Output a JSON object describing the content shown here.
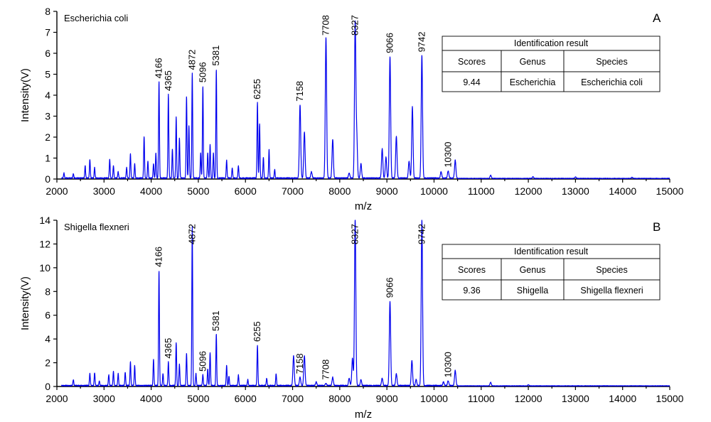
{
  "chart_data": [
    {
      "type": "line",
      "panel": "A",
      "species_label": "Escherichia coli",
      "xlabel": "m/z",
      "ylabel": "Intensity(V)",
      "xlim": [
        2000,
        15000
      ],
      "ylim": [
        0,
        8
      ],
      "xticks": [
        2000,
        3000,
        4000,
        5000,
        6000,
        7000,
        8000,
        9000,
        10000,
        11000,
        12000,
        13000,
        14000,
        15000
      ],
      "yticks": [
        0,
        1,
        2,
        3,
        4,
        5,
        6,
        7,
        8
      ],
      "labeled_peaks": [
        {
          "mz": 4166,
          "intensity": 4.6,
          "label": "4166"
        },
        {
          "mz": 4365,
          "intensity": 4.0,
          "label": "4365"
        },
        {
          "mz": 4872,
          "intensity": 5.0,
          "label": "4872"
        },
        {
          "mz": 5096,
          "intensity": 4.4,
          "label": "5096"
        },
        {
          "mz": 5381,
          "intensity": 5.2,
          "label": "5381"
        },
        {
          "mz": 6255,
          "intensity": 3.6,
          "label": "6255"
        },
        {
          "mz": 7158,
          "intensity": 3.5,
          "label": "7158"
        },
        {
          "mz": 7708,
          "intensity": 6.7,
          "label": "7708"
        },
        {
          "mz": 8327,
          "intensity": 7.4,
          "label": "8327"
        },
        {
          "mz": 9066,
          "intensity": 5.8,
          "label": "9066"
        },
        {
          "mz": 9742,
          "intensity": 5.85,
          "label": "9742"
        },
        {
          "mz": 10300,
          "intensity": 0.35,
          "label": "10300"
        }
      ],
      "minor_peaks": [
        [
          2150,
          0.25
        ],
        [
          2350,
          0.2
        ],
        [
          2600,
          0.6
        ],
        [
          2700,
          0.9
        ],
        [
          2800,
          0.5
        ],
        [
          3120,
          0.9
        ],
        [
          3200,
          0.6
        ],
        [
          3300,
          0.3
        ],
        [
          3480,
          0.5
        ],
        [
          3560,
          1.15
        ],
        [
          3650,
          0.7
        ],
        [
          3850,
          2.0
        ],
        [
          3930,
          0.8
        ],
        [
          4050,
          0.7
        ],
        [
          4100,
          1.2
        ],
        [
          4450,
          1.4
        ],
        [
          4530,
          2.9
        ],
        [
          4600,
          1.9
        ],
        [
          4750,
          3.9
        ],
        [
          4800,
          2.5
        ],
        [
          5050,
          1.2
        ],
        [
          5200,
          1.2
        ],
        [
          5250,
          1.6
        ],
        [
          5320,
          1.2
        ],
        [
          5600,
          0.85
        ],
        [
          5720,
          0.5
        ],
        [
          5850,
          0.6
        ],
        [
          6300,
          2.6
        ],
        [
          6380,
          1.0
        ],
        [
          6500,
          1.4
        ],
        [
          6620,
          0.4
        ],
        [
          7250,
          2.2
        ],
        [
          7400,
          0.3
        ],
        [
          7850,
          1.85
        ],
        [
          8200,
          0.25
        ],
        [
          8360,
          2.0
        ],
        [
          8450,
          0.7
        ],
        [
          8900,
          1.4
        ],
        [
          8980,
          1.0
        ],
        [
          9200,
          2.0
        ],
        [
          9470,
          0.8
        ],
        [
          9540,
          3.4
        ],
        [
          10150,
          0.3
        ],
        [
          10450,
          0.85
        ],
        [
          11200,
          0.15
        ],
        [
          12100,
          0.08
        ],
        [
          13000,
          0.07
        ],
        [
          14200,
          0.05
        ]
      ],
      "identification": {
        "title": "Identification result",
        "headers": [
          "Scores",
          "Genus",
          "Species"
        ],
        "values": [
          "9.44",
          "Escherichia",
          "Escherichia coli"
        ]
      }
    },
    {
      "type": "line",
      "panel": "B",
      "species_label": "Shigella flexneri",
      "xlabel": "m/z",
      "ylabel": "Intensity(V)",
      "xlim": [
        2000,
        15000
      ],
      "ylim": [
        0,
        14
      ],
      "xticks": [
        2000,
        3000,
        4000,
        5000,
        6000,
        7000,
        8000,
        9000,
        10000,
        11000,
        12000,
        13000,
        14000,
        15000
      ],
      "yticks": [
        0,
        2,
        4,
        6,
        8,
        10,
        12,
        14
      ],
      "labeled_peaks": [
        {
          "mz": 4166,
          "intensity": 9.7,
          "label": "4166"
        },
        {
          "mz": 4365,
          "intensity": 2.0,
          "label": "4365"
        },
        {
          "mz": 4872,
          "intensity": 13.4,
          "label": "4872"
        },
        {
          "mz": 5096,
          "intensity": 0.9,
          "label": "5096"
        },
        {
          "mz": 5381,
          "intensity": 4.3,
          "label": "5381"
        },
        {
          "mz": 6255,
          "intensity": 3.4,
          "label": "6255"
        },
        {
          "mz": 7158,
          "intensity": 0.7,
          "label": "7158"
        },
        {
          "mz": 7708,
          "intensity": 0.2,
          "label": "7708"
        },
        {
          "mz": 8327,
          "intensity": 14.0,
          "label": "8327"
        },
        {
          "mz": 9066,
          "intensity": 7.1,
          "label": "9066"
        },
        {
          "mz": 9742,
          "intensity": 14.0,
          "label": "9742"
        },
        {
          "mz": 10300,
          "intensity": 0.4,
          "label": "10300"
        }
      ],
      "minor_peaks": [
        [
          2350,
          0.5
        ],
        [
          2700,
          1.0
        ],
        [
          2800,
          1.1
        ],
        [
          2900,
          0.4
        ],
        [
          3100,
          0.9
        ],
        [
          3200,
          1.2
        ],
        [
          3300,
          1.0
        ],
        [
          3450,
          1.1
        ],
        [
          3560,
          2.0
        ],
        [
          3650,
          1.7
        ],
        [
          4050,
          2.2
        ],
        [
          4250,
          1.0
        ],
        [
          4530,
          3.6
        ],
        [
          4600,
          1.8
        ],
        [
          4750,
          2.7
        ],
        [
          4950,
          1.0
        ],
        [
          5200,
          1.4
        ],
        [
          5250,
          2.8
        ],
        [
          5600,
          1.7
        ],
        [
          5650,
          0.8
        ],
        [
          5850,
          0.9
        ],
        [
          6050,
          0.5
        ],
        [
          6450,
          0.6
        ],
        [
          6650,
          1.0
        ],
        [
          7020,
          2.5
        ],
        [
          7250,
          2.5
        ],
        [
          7500,
          0.3
        ],
        [
          7850,
          0.7
        ],
        [
          8200,
          0.6
        ],
        [
          8270,
          2.3
        ],
        [
          8450,
          0.5
        ],
        [
          8900,
          0.6
        ],
        [
          9200,
          1.0
        ],
        [
          9530,
          2.1
        ],
        [
          9620,
          0.5
        ],
        [
          10200,
          0.3
        ],
        [
          10450,
          1.3
        ],
        [
          11200,
          0.3
        ],
        [
          12000,
          0.1
        ]
      ],
      "identification": {
        "title": "Identification result",
        "headers": [
          "Scores",
          "Genus",
          "Species"
        ],
        "values": [
          "9.36",
          "Shigella",
          "Shigella flexneri"
        ]
      }
    }
  ]
}
